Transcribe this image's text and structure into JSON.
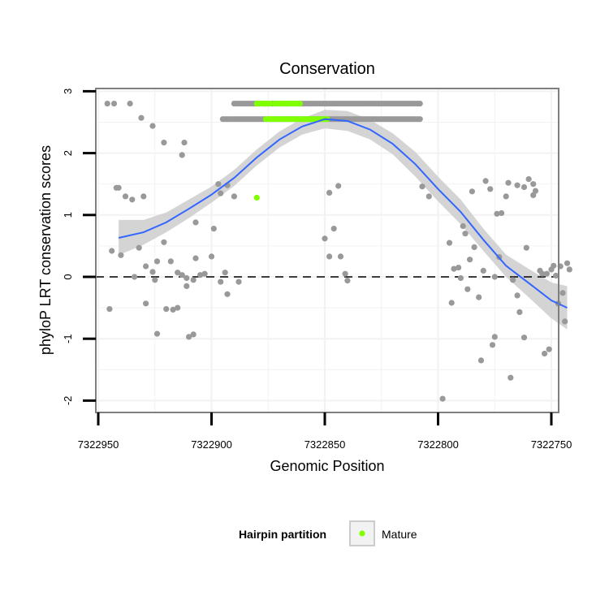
{
  "chart_data": {
    "type": "scatter",
    "title": "Conservation",
    "xlabel": "Genomic Position",
    "ylabel": "phyloP LRT conservation scores",
    "x_reversed": true,
    "xlim": [
      7322950,
      7322750
    ],
    "ylim": [
      -2,
      3
    ],
    "x_ticks": [
      7322950,
      7322900,
      7322850,
      7322800,
      7322750
    ],
    "y_ticks": [
      -2,
      -1,
      0,
      1,
      2,
      3
    ],
    "reference_line_y": 0,
    "legend": {
      "title": "Hairpin partition",
      "position": "bottom",
      "entries": [
        "Mature"
      ]
    },
    "colors": {
      "other": "#999999",
      "mature": "#7fff00",
      "smooth": "#3366ff",
      "band": "#cccccc",
      "refline": "#000000"
    },
    "series": [
      {
        "name": "Other",
        "points": [
          [
            7322946,
            2.8
          ],
          [
            7322943,
            2.8
          ],
          [
            7322936,
            2.8
          ],
          [
            7322931,
            2.57
          ],
          [
            7322926,
            2.44
          ],
          [
            7322921,
            2.17
          ],
          [
            7322913,
            1.97
          ],
          [
            7322912,
            2.17
          ],
          [
            7322942,
            1.44
          ],
          [
            7322941,
            1.44
          ],
          [
            7322938,
            1.3
          ],
          [
            7322935,
            1.25
          ],
          [
            7322930,
            1.3
          ],
          [
            7322944,
            0.42
          ],
          [
            7322940,
            0.35
          ],
          [
            7322932,
            0.47
          ],
          [
            7322929,
            0.17
          ],
          [
            7322926,
            0.08
          ],
          [
            7322924,
            0.25
          ],
          [
            7322921,
            0.56
          ],
          [
            7322918,
            0.25
          ],
          [
            7322915,
            0.07
          ],
          [
            7322913,
            0.03
          ],
          [
            7322911,
            -0.02
          ],
          [
            7322907,
            0.3
          ],
          [
            7322905,
            0.03
          ],
          [
            7322903,
            0.05
          ],
          [
            7322900,
            0.33
          ],
          [
            7322899,
            0.78
          ],
          [
            7322934,
            0.0
          ],
          [
            7322925,
            -0.05
          ],
          [
            7322911,
            -0.15
          ],
          [
            7322908,
            -0.05
          ],
          [
            7322896,
            -0.08
          ],
          [
            7322893,
            -0.28
          ],
          [
            7322888,
            -0.08
          ],
          [
            7322894,
            0.07
          ],
          [
            7322929,
            -0.43
          ],
          [
            7322945,
            -0.52
          ],
          [
            7322920,
            -0.52
          ],
          [
            7322917,
            -0.53
          ],
          [
            7322915,
            -0.5
          ],
          [
            7322924,
            -0.92
          ],
          [
            7322910,
            -0.97
          ],
          [
            7322908,
            -0.93
          ],
          [
            7322907,
            0.88
          ],
          [
            7322897,
            1.5
          ],
          [
            7322896,
            1.35
          ],
          [
            7322890,
            1.3
          ],
          [
            7322893,
            1.48
          ],
          [
            7322844,
            1.47
          ],
          [
            7322848,
            1.36
          ],
          [
            7322848,
            0.33
          ],
          [
            7322843,
            0.33
          ],
          [
            7322846,
            0.78
          ],
          [
            7322850,
            0.62
          ],
          [
            7322841,
            0.05
          ],
          [
            7322840,
            -0.06
          ],
          [
            7322807,
            1.46
          ],
          [
            7322804,
            1.3
          ],
          [
            7322795,
            0.55
          ],
          [
            7322793,
            0.13
          ],
          [
            7322791,
            0.15
          ],
          [
            7322789,
            0.82
          ],
          [
            7322788,
            0.7
          ],
          [
            7322786,
            0.28
          ],
          [
            7322785,
            1.38
          ],
          [
            7322784,
            0.48
          ],
          [
            7322782,
            -0.33
          ],
          [
            7322780,
            0.1
          ],
          [
            7322790,
            -0.02
          ],
          [
            7322794,
            -0.42
          ],
          [
            7322787,
            -0.2
          ],
          [
            7322775,
            0.0
          ],
          [
            7322779,
            1.55
          ],
          [
            7322777,
            1.42
          ],
          [
            7322774,
            1.02
          ],
          [
            7322772,
            1.03
          ],
          [
            7322770,
            1.3
          ],
          [
            7322769,
            1.52
          ],
          [
            7322765,
            1.48
          ],
          [
            7322762,
            1.45
          ],
          [
            7322760,
            1.58
          ],
          [
            7322758,
            1.5
          ],
          [
            7322758,
            1.32
          ],
          [
            7322757,
            1.39
          ],
          [
            7322761,
            0.47
          ],
          [
            7322773,
            0.32
          ],
          [
            7322767,
            -0.05
          ],
          [
            7322765,
            -0.3
          ],
          [
            7322764,
            -0.57
          ],
          [
            7322775,
            -0.97
          ],
          [
            7322776,
            -1.1
          ],
          [
            7322781,
            -1.35
          ],
          [
            7322768,
            -1.63
          ],
          [
            7322762,
            -0.98
          ],
          [
            7322798,
            -1.97
          ],
          [
            7322753,
            -1.24
          ],
          [
            7322751,
            -1.17
          ],
          [
            7322754,
            0.05
          ],
          [
            7322755,
            0.1
          ],
          [
            7322752,
            0.05
          ],
          [
            7322750,
            0.12
          ],
          [
            7322749,
            0.18
          ],
          [
            7322746,
            0.17
          ],
          [
            7322745,
            -0.26
          ],
          [
            7322747,
            -0.43
          ],
          [
            7322744,
            -0.72
          ],
          [
            7322742,
            0.12
          ],
          [
            7322748,
            0.02
          ],
          [
            7322743,
            0.22
          ]
        ]
      },
      {
        "name": "Mature",
        "points": [
          [
            7322880,
            1.28
          ]
        ]
      }
    ],
    "bands": [
      {
        "name": "Other",
        "y": 2.8,
        "ranges": [
          [
            7322890,
            7322864
          ],
          [
            7322863,
            7322839
          ],
          [
            7322838,
            7322808
          ]
        ]
      },
      {
        "name": "Other",
        "y": 2.55,
        "ranges": [
          [
            7322895,
            7322864
          ],
          [
            7322863,
            7322808
          ]
        ]
      },
      {
        "name": "Mature",
        "y": 2.8,
        "ranges": [
          [
            7322880,
            7322874
          ],
          [
            7322872,
            7322861
          ]
        ]
      },
      {
        "name": "Mature",
        "y": 2.55,
        "ranges": [
          [
            7322876,
            7322849
          ]
        ]
      }
    ],
    "smooth": {
      "x": [
        7322941,
        7322930,
        7322920,
        7322910,
        7322900,
        7322890,
        7322880,
        7322870,
        7322860,
        7322850,
        7322840,
        7322830,
        7322820,
        7322810,
        7322800,
        7322790,
        7322780,
        7322770,
        7322760,
        7322750,
        7322743
      ],
      "y": [
        0.63,
        0.72,
        0.88,
        1.1,
        1.33,
        1.6,
        1.93,
        2.22,
        2.43,
        2.55,
        2.52,
        2.38,
        2.15,
        1.82,
        1.42,
        1.05,
        0.6,
        0.18,
        -0.1,
        -0.38,
        -0.5
      ],
      "lower": [
        0.35,
        0.52,
        0.72,
        0.95,
        1.2,
        1.47,
        1.8,
        2.09,
        2.3,
        2.4,
        2.36,
        2.22,
        1.98,
        1.62,
        1.22,
        0.85,
        0.42,
        0.0,
        -0.33,
        -0.67,
        -0.85
      ],
      "upper": [
        0.92,
        0.92,
        1.04,
        1.25,
        1.46,
        1.73,
        2.06,
        2.35,
        2.56,
        2.7,
        2.68,
        2.54,
        2.32,
        2.02,
        1.62,
        1.25,
        0.78,
        0.36,
        0.13,
        -0.09,
        -0.15
      ]
    }
  }
}
